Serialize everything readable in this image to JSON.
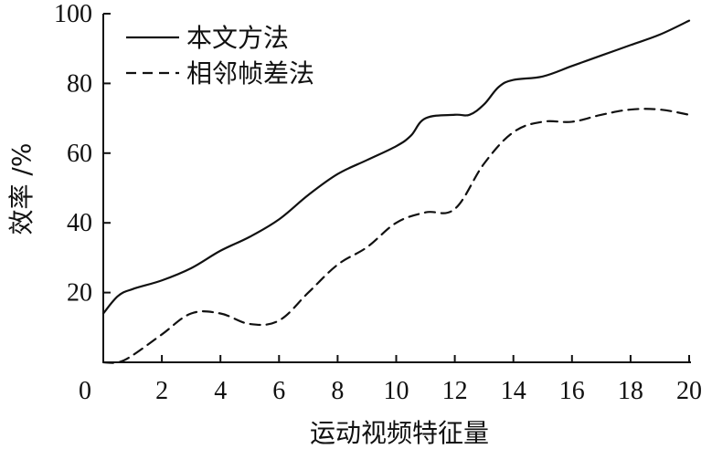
{
  "chart_data": {
    "type": "line",
    "title": "",
    "xlabel": "运动视频特征量",
    "ylabel": "效率 /%",
    "xlim": [
      0,
      20
    ],
    "ylim": [
      0,
      100
    ],
    "x_ticks": [
      0,
      2,
      4,
      6,
      8,
      10,
      12,
      14,
      16,
      18,
      20
    ],
    "y_ticks": [
      20,
      40,
      60,
      80,
      100
    ],
    "grid": false,
    "legend_position": "top-left",
    "series": [
      {
        "name": "本文方法",
        "style": "solid",
        "color": "#111111",
        "x": [
          0,
          0.5,
          1,
          2,
          3,
          4,
          5,
          6,
          7,
          8,
          9,
          10,
          10.5,
          11,
          12,
          12.5,
          13,
          13.5,
          14,
          15,
          16,
          17,
          18,
          19,
          20
        ],
        "y": [
          14,
          19,
          21,
          23.5,
          27,
          32,
          36,
          41,
          48,
          54,
          58,
          62,
          65,
          70,
          71,
          71,
          74,
          79,
          81,
          82,
          85,
          88,
          91,
          94,
          98
        ]
      },
      {
        "name": "相邻帧差法",
        "style": "dashed",
        "color": "#111111",
        "x": [
          0,
          0.5,
          1,
          2,
          3,
          4,
          5,
          6,
          7,
          8,
          9,
          10,
          11,
          12,
          13,
          14,
          15,
          16,
          17,
          18,
          19,
          20
        ],
        "y": [
          0,
          0,
          2,
          8,
          14,
          14,
          11,
          12,
          20,
          28,
          33,
          40,
          43,
          44,
          57,
          66,
          69,
          69,
          71,
          72.5,
          72.5,
          71
        ]
      }
    ]
  }
}
